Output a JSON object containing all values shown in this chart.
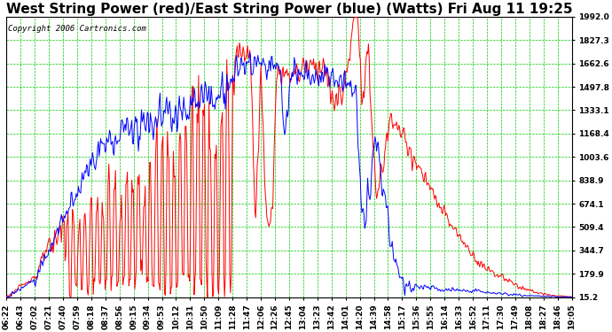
{
  "title": "West String Power (red)/East String Power (blue) (Watts) Fri Aug 11 19:25",
  "copyright_text": "Copyright 2006 Cartronics.com",
  "background_color": "#ffffff",
  "plot_bg_color": "#ffffff",
  "grid_color": "#00cc00",
  "red_line_color": "#ff0000",
  "blue_line_color": "#0000ff",
  "yticks": [
    15.2,
    179.9,
    344.7,
    509.4,
    674.1,
    838.9,
    1003.6,
    1168.4,
    1333.1,
    1497.8,
    1662.6,
    1827.3,
    1992.0
  ],
  "ylim": [
    15.2,
    1992.0
  ],
  "xtick_labels": [
    "06:22",
    "06:43",
    "07:02",
    "07:21",
    "07:40",
    "07:59",
    "08:18",
    "08:37",
    "08:56",
    "09:15",
    "09:34",
    "09:53",
    "10:12",
    "10:31",
    "10:50",
    "11:09",
    "11:28",
    "11:47",
    "12:06",
    "12:26",
    "12:45",
    "13:04",
    "13:23",
    "13:42",
    "14:01",
    "14:20",
    "14:39",
    "14:58",
    "15:17",
    "15:36",
    "15:55",
    "16:14",
    "16:33",
    "16:52",
    "17:11",
    "17:30",
    "17:49",
    "18:08",
    "18:27",
    "18:46",
    "19:05"
  ],
  "title_fontsize": 11,
  "tick_fontsize": 6.5,
  "copyright_fontsize": 6.5
}
